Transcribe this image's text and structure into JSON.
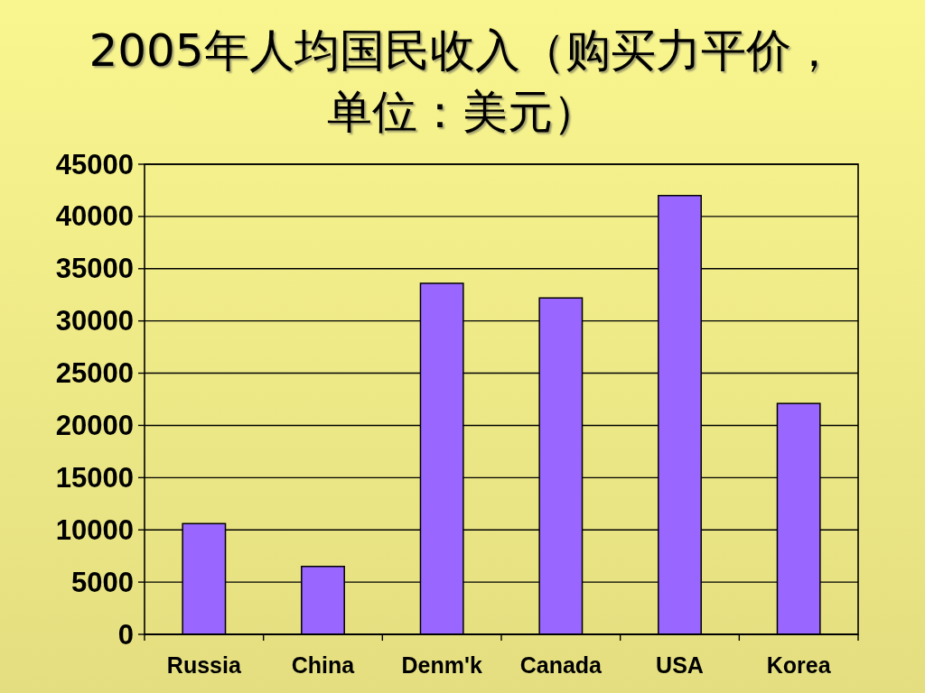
{
  "chart_data": {
    "type": "bar",
    "title": "2005年人均国民收入（购买力平价，单位：美元）",
    "categories": [
      "Russia",
      "China",
      "Denm'k",
      "Canada",
      "USA",
      "Korea"
    ],
    "values": [
      10600,
      6500,
      33600,
      32200,
      42000,
      22100
    ],
    "color": "#9966ff",
    "ylim": [
      0,
      45000
    ],
    "yticks": [
      0,
      5000,
      10000,
      15000,
      20000,
      25000,
      30000,
      35000,
      40000,
      45000
    ],
    "grid": "y"
  }
}
